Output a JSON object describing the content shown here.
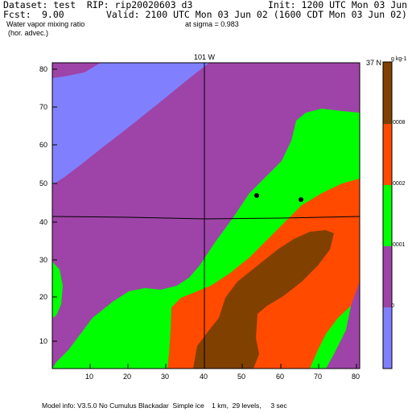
{
  "header": {
    "dataset_line": "Dataset: test  RIP: rip20020603 d3",
    "init_line": "Init: 1200 UTC Mon 03 Jun 02",
    "fcst_label": "Fcst:",
    "fcst_value": "9.00",
    "valid_line": "Valid: 2100 UTC Mon 03 Jun 02 (1600 CDT Mon 03 Jun 02)",
    "field_name": "Water vapor mixing ratio",
    "field_note": "(hor. advec.)",
    "level": "at sigma = 0.983"
  },
  "map": {
    "lon_label": "101 W",
    "lat_label": "37 N",
    "x_ticks": [
      "10",
      "20",
      "30",
      "40",
      "50",
      "60",
      "70",
      "80"
    ],
    "y_ticks": [
      "10",
      "20",
      "30",
      "40",
      "50",
      "60",
      "70",
      "80"
    ],
    "colors": {
      "blue": "#8080ff",
      "purple": "#9e44a8",
      "green": "#00ff00",
      "orange": "#ff4a00",
      "brown": "#804000",
      "grid": "#000000"
    }
  },
  "legend": {
    "units": "g kg-1",
    "labels": [
      ".0008",
      ".0002",
      ".0001",
      "0"
    ],
    "bands": [
      "brown",
      "orange",
      "green",
      "purple",
      "blue"
    ]
  },
  "footer": {
    "model_info": "Model info: V3.5.0 No Cumulus Blackadar  Simple ice    1 km,  29 levels,     3 sec"
  }
}
